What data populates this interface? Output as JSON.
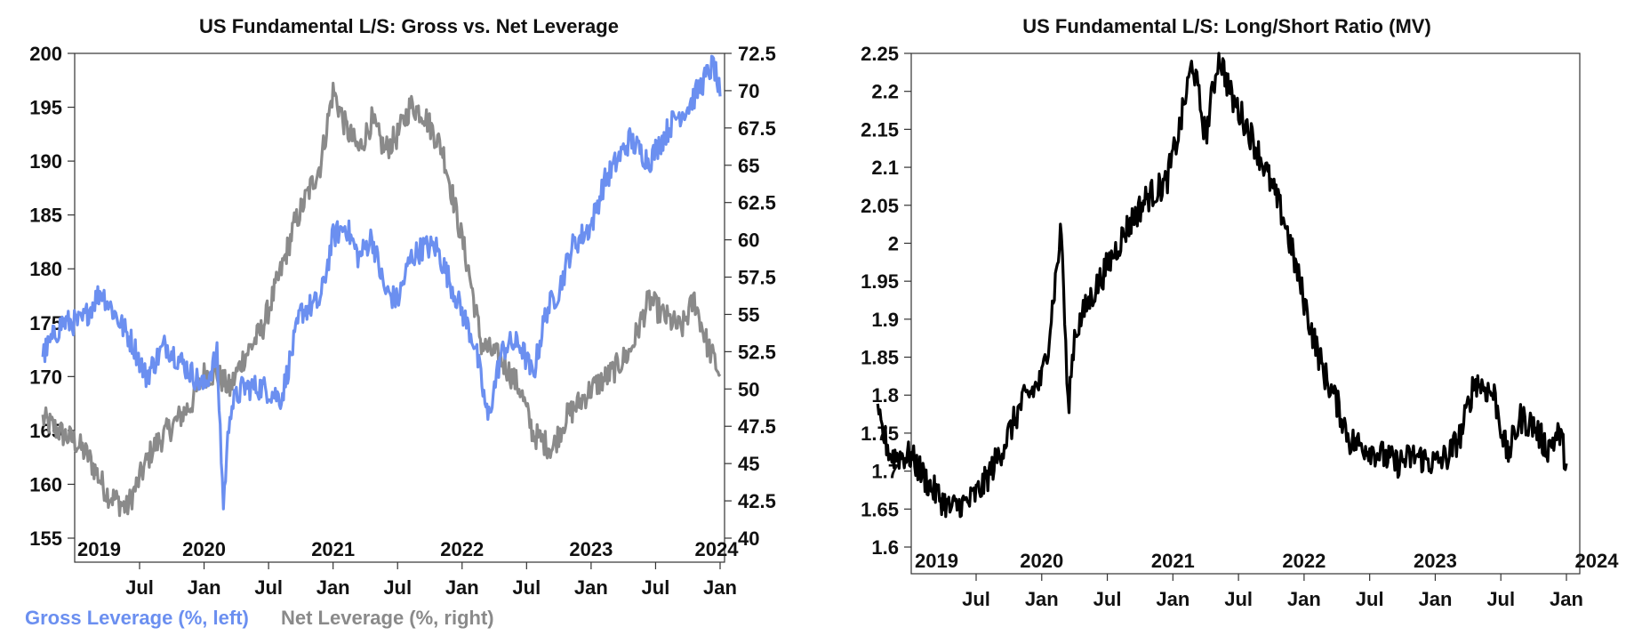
{
  "chart_data": [
    {
      "type": "line",
      "title": "US Fundamental L/S: Gross vs. Net Leverage",
      "x_range": [
        "2018-10",
        "2024-01"
      ],
      "year_labels": [
        "2019",
        "2020",
        "2021",
        "2022",
        "2023",
        "2024"
      ],
      "month_labels": [
        "Jul",
        "Jan",
        "Jul",
        "Jan",
        "Jul",
        "Jan",
        "Jul",
        "Jan",
        "Jul",
        "Jan"
      ],
      "y_left": {
        "ylim": [
          155,
          200
        ],
        "ticks": [
          "200",
          "195",
          "190",
          "185",
          "180",
          "175",
          "170",
          "165",
          "160",
          "155"
        ]
      },
      "y_right": {
        "ylim": [
          40,
          72.5
        ],
        "ticks": [
          "72.5",
          "70",
          "67.5",
          "65",
          "62.5",
          "60",
          "57.5",
          "55",
          "52.5",
          "50",
          "47.5",
          "45",
          "42.5",
          "40"
        ]
      },
      "colors": {
        "gross": "#6b8ff0",
        "net": "#8a8a8a"
      },
      "series": [
        {
          "name": "Gross Leverage (%, left)",
          "axis": "left",
          "x": [
            2018.75,
            2018.9,
            2019.05,
            2019.2,
            2019.3,
            2019.45,
            2019.55,
            2019.7,
            2019.85,
            2020.0,
            2020.1,
            2020.15,
            2020.2,
            2020.3,
            2020.45,
            2020.6,
            2020.75,
            2020.9,
            2021.0,
            2021.1,
            2021.2,
            2021.3,
            2021.4,
            2021.5,
            2021.6,
            2021.7,
            2021.8,
            2021.9,
            2022.0,
            2022.1,
            2022.2,
            2022.3,
            2022.35,
            2022.45,
            2022.55,
            2022.65,
            2022.75,
            2022.85,
            2023.0,
            2023.1,
            2023.2,
            2023.3,
            2023.45,
            2023.55,
            2023.65,
            2023.75,
            2023.85,
            2023.95,
            2024.0
          ],
          "values": [
            172,
            175,
            175,
            178,
            176,
            173,
            170,
            173,
            171,
            169,
            172,
            158,
            167,
            169,
            169,
            168,
            176,
            177,
            183,
            184,
            181,
            183,
            178,
            177,
            181,
            182,
            182,
            179,
            176,
            173,
            166,
            172,
            173,
            173,
            170,
            176,
            178,
            182,
            184,
            188,
            190,
            192,
            190,
            192,
            194,
            195,
            197,
            199,
            196
          ],
          "min": 157,
          "max": 200
        },
        {
          "name": "Net Leverage (%, right)",
          "axis": "right",
          "x": [
            2018.75,
            2018.9,
            2019.0,
            2019.1,
            2019.25,
            2019.4,
            2019.5,
            2019.6,
            2019.75,
            2019.9,
            2020.0,
            2020.1,
            2020.2,
            2020.3,
            2020.45,
            2020.6,
            2020.7,
            2020.8,
            2020.9,
            2021.0,
            2021.1,
            2021.2,
            2021.3,
            2021.4,
            2021.5,
            2021.6,
            2021.7,
            2021.85,
            2021.95,
            2022.05,
            2022.15,
            2022.3,
            2022.45,
            2022.55,
            2022.7,
            2022.8,
            2022.9,
            2023.0,
            2023.15,
            2023.3,
            2023.45,
            2023.55,
            2023.7,
            2023.8,
            2023.9,
            2024.0
          ],
          "values": [
            48,
            47,
            46.5,
            45.5,
            43,
            42,
            44,
            46,
            47.5,
            49,
            51,
            51,
            50,
            52,
            54,
            58,
            61,
            63,
            65,
            70,
            67.5,
            66,
            68,
            66,
            67,
            69,
            68.5,
            66,
            62,
            58,
            53,
            52,
            50,
            47,
            46,
            48,
            49,
            50,
            51,
            52.5,
            56,
            55,
            54,
            56,
            53,
            51
          ],
          "min": 41.5,
          "max": 70.5
        }
      ]
    },
    {
      "type": "line",
      "title": "US Fundamental L/S: Long/Short Ratio (MV)",
      "x_range": [
        "2018-10",
        "2024-01"
      ],
      "year_labels": [
        "2019",
        "2020",
        "2021",
        "2022",
        "2023",
        "2024"
      ],
      "month_labels": [
        "Jul",
        "Jan",
        "Jul",
        "Jan",
        "Jul",
        "Jan",
        "Jul",
        "Jan",
        "Jul",
        "Jan"
      ],
      "y": {
        "ylim": [
          1.6,
          2.25
        ],
        "ticks": [
          "2.25",
          "2.2",
          "2.15",
          "2.1",
          "2.05",
          "2",
          "1.95",
          "1.9",
          "1.85",
          "1.8",
          "1.75",
          "1.7",
          "1.65",
          "1.6"
        ]
      },
      "colors": {
        "ratio": "#000000"
      },
      "series": [
        {
          "name": "Long/Short Ratio (MV)",
          "x": [
            2018.75,
            2018.85,
            2019.0,
            2019.15,
            2019.3,
            2019.45,
            2019.55,
            2019.7,
            2019.85,
            2020.0,
            2020.05,
            2020.15,
            2020.2,
            2020.25,
            2020.35,
            2020.5,
            2020.65,
            2020.8,
            2020.95,
            2021.05,
            2021.15,
            2021.25,
            2021.35,
            2021.45,
            2021.55,
            2021.7,
            2021.85,
            2021.95,
            2022.05,
            2022.15,
            2022.25,
            2022.35,
            2022.5,
            2022.6,
            2022.7,
            2022.85,
            2023.0,
            2023.1,
            2023.2,
            2023.3,
            2023.45,
            2023.55,
            2023.65,
            2023.75,
            2023.85,
            2023.95,
            2024.0
          ],
          "values": [
            1.77,
            1.72,
            1.72,
            1.68,
            1.65,
            1.66,
            1.68,
            1.73,
            1.79,
            1.82,
            1.87,
            2.02,
            1.78,
            1.88,
            1.92,
            1.97,
            2.02,
            2.06,
            2.08,
            2.15,
            2.24,
            2.14,
            2.25,
            2.19,
            2.16,
            2.1,
            2.03,
            1.96,
            1.89,
            1.83,
            1.79,
            1.74,
            1.73,
            1.72,
            1.71,
            1.72,
            1.71,
            1.72,
            1.75,
            1.82,
            1.8,
            1.72,
            1.77,
            1.76,
            1.73,
            1.75,
            1.71
          ],
          "min": 1.64,
          "max": 2.25
        }
      ]
    }
  ]
}
